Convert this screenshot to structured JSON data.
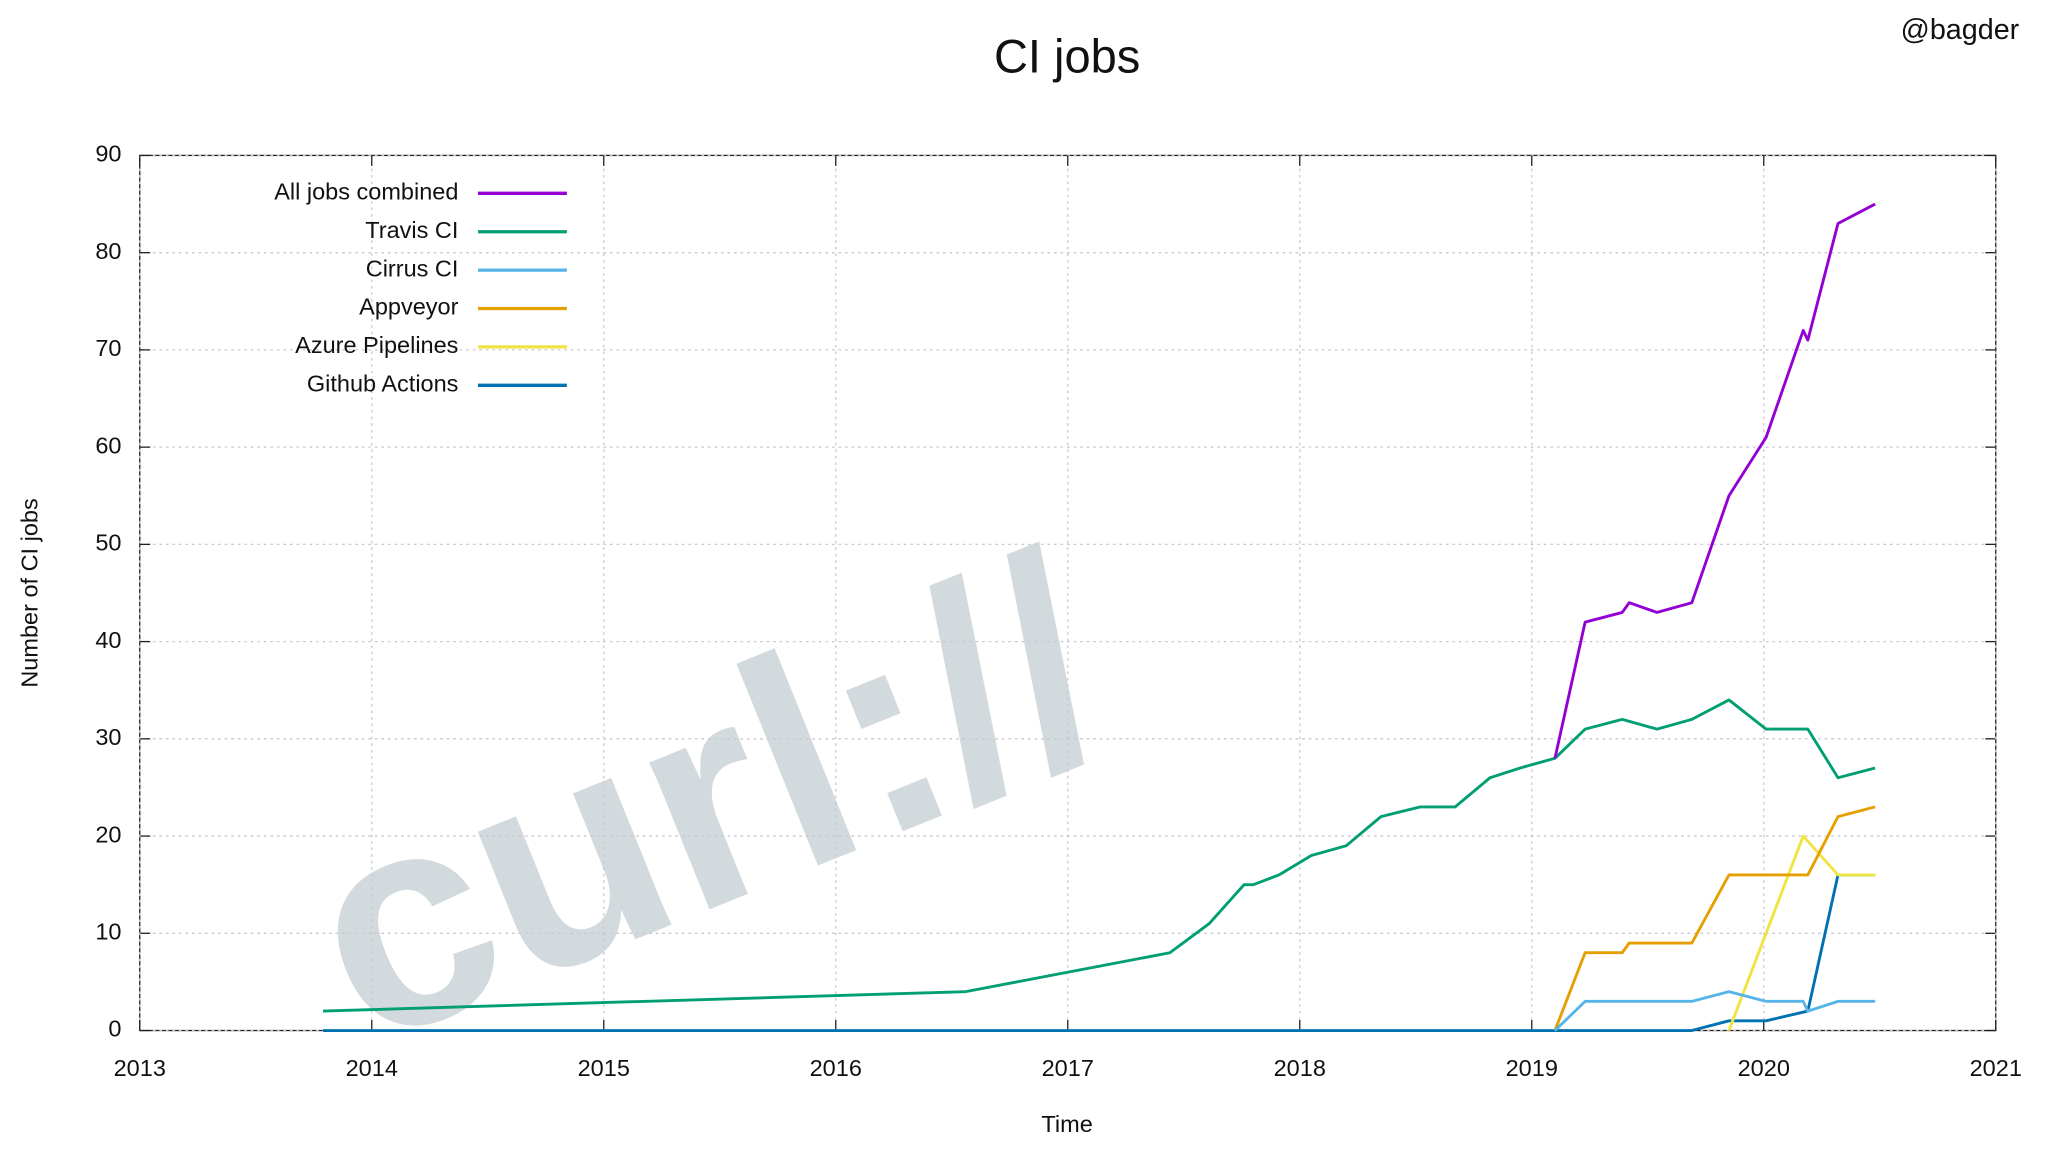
{
  "chart_data": {
    "type": "line",
    "title": "CI jobs",
    "credit": "@bagder",
    "watermark": "curl://",
    "x_label": "Time",
    "y_label": "Number of CI jobs",
    "xlim": [
      2013,
      2021
    ],
    "xticks": [
      2013,
      2014,
      2015,
      2016,
      2017,
      2018,
      2019,
      2020,
      2021
    ],
    "ylim": [
      0,
      90
    ],
    "yticks": [
      0,
      10,
      20,
      30,
      40,
      50,
      60,
      70,
      80,
      90
    ],
    "grid": true,
    "legend": "top-left",
    "series": [
      {
        "name": "All jobs combined",
        "color": "#9400d3",
        "x": [
          2019.1,
          2019.23,
          2019.39,
          2019.42,
          2019.54,
          2019.69,
          2019.85,
          2020.01,
          2020.17,
          2020.19,
          2020.32,
          2020.48
        ],
        "values": [
          28,
          42,
          43,
          44,
          43,
          44,
          55,
          61,
          72,
          71,
          83,
          85
        ]
      },
      {
        "name": "Travis CI",
        "color": "#009e73",
        "x": [
          2013.79,
          2016.56,
          2017.44,
          2017.61,
          2017.76,
          2017.8,
          2017.91,
          2018.05,
          2018.2,
          2018.35,
          2018.52,
          2018.67,
          2018.82,
          2018.95,
          2019.1,
          2019.23,
          2019.39,
          2019.54,
          2019.69,
          2019.85,
          2020.01,
          2020.19,
          2020.32,
          2020.48
        ],
        "values": [
          2,
          4,
          8,
          11,
          15,
          15,
          16,
          18,
          19,
          22,
          23,
          23,
          26,
          27,
          28,
          31,
          32,
          31,
          32,
          34,
          31,
          31,
          26,
          27
        ]
      },
      {
        "name": "Cirrus CI",
        "color": "#56b4e9",
        "x": [
          2019.1,
          2019.23,
          2019.69,
          2019.85,
          2020.01,
          2020.17,
          2020.19,
          2020.32,
          2020.48
        ],
        "values": [
          0,
          3,
          3,
          4,
          3,
          3,
          2,
          3,
          3
        ]
      },
      {
        "name": "Appveyor",
        "color": "#e69f00",
        "x": [
          2019.1,
          2019.23,
          2019.39,
          2019.42,
          2019.69,
          2019.85,
          2020.19,
          2020.32,
          2020.48
        ],
        "values": [
          0,
          8,
          8,
          9,
          9,
          16,
          16,
          22,
          23
        ]
      },
      {
        "name": "Azure Pipelines",
        "color": "#f0e442",
        "x": [
          2019.85,
          2020.01,
          2020.17,
          2020.32,
          2020.48
        ],
        "values": [
          0,
          10,
          20,
          16,
          16
        ]
      },
      {
        "name": "Github Actions",
        "color": "#0072b2",
        "x": [
          2013.79,
          2019.69,
          2019.85,
          2020.01,
          2020.19,
          2020.32,
          2020.48
        ],
        "values": [
          0,
          0,
          1,
          1,
          2,
          16,
          16
        ]
      }
    ]
  }
}
